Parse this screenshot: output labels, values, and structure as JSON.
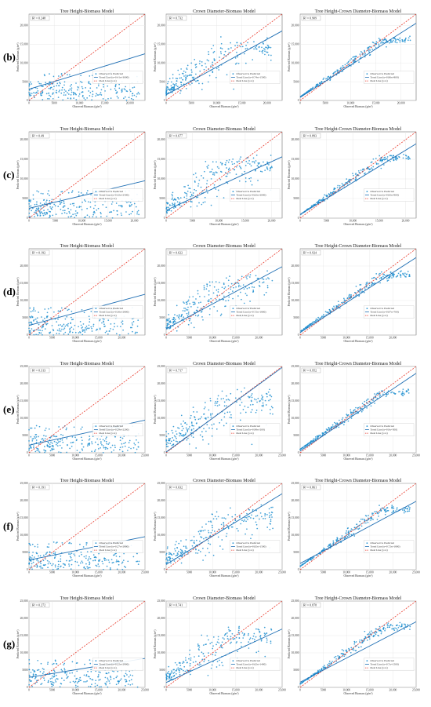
{
  "figure": {
    "row_labels": [
      "(b)",
      "(c)",
      "(d)",
      "(e)",
      "(f)",
      "(g)"
    ],
    "legend": [
      "Observed vs Predicted",
      "Trend Line",
      "Ideal Line (y=x)"
    ],
    "colors": {
      "points": "#1f8fd0",
      "trend": "#1f6fb4",
      "ideal": "#e8392b",
      "grid": "#e3e3e3"
    }
  },
  "chart_data": [
    {
      "row": "(b)",
      "type": "scatter",
      "title": "Tree Height-Biomass Model",
      "r2_label": "R² = 0.248",
      "xlabel": "Observed Biomass (g/m²)",
      "ylabel": "Predicted Biomass (g/m²)",
      "xlim": [
        0,
        23000
      ],
      "ylim": [
        0,
        23000
      ],
      "xticks": [
        0,
        5000,
        10000,
        15000,
        20000
      ],
      "yticks": [
        0,
        5000,
        10000,
        15000,
        20000
      ],
      "trend": {
        "slope": 0.41,
        "intercept": 3000
      },
      "trend_label": "Trend Line (y=0.41x+3000)",
      "pattern": "height",
      "grid": true,
      "legend_position": "right"
    },
    {
      "row": "(b)",
      "type": "scatter",
      "title": "Crown Diameter-Biomass Model",
      "r2_label": "R² = 0.732",
      "xlabel": "Observed Biomass (g/m²)",
      "ylabel": "Predicted Biomass (g/m²)",
      "xlim": [
        0,
        23000
      ],
      "ylim": [
        0,
        23000
      ],
      "xticks": [
        0,
        5000,
        10000,
        15000,
        20000
      ],
      "yticks": [
        0,
        5000,
        10000,
        15000,
        20000
      ],
      "trend": {
        "slope": 0.74,
        "intercept": 1500
      },
      "trend_label": "Trend Line (y=0.74x+1500)",
      "pattern": "crown",
      "grid": true,
      "legend_position": "right"
    },
    {
      "row": "(b)",
      "type": "scatter",
      "title": "Tree Height-Crown Diameter-Biomass Model",
      "r2_label": "R² = 0.909",
      "xlabel": "Observed Biomass (g/m²)",
      "ylabel": "Predicted Biomass (g/m²)",
      "xlim": [
        0,
        23000
      ],
      "ylim": [
        0,
        23000
      ],
      "xticks": [
        0,
        5000,
        10000,
        15000,
        20000
      ],
      "yticks": [
        0,
        5000,
        10000,
        15000,
        20000
      ],
      "trend": {
        "slope": 0.86,
        "intercept": 800
      },
      "trend_label": "Trend Line (y=0.86x+800)",
      "pattern": "combined",
      "grid": true,
      "legend_position": "right"
    },
    {
      "row": "(c)",
      "type": "scatter",
      "title": "Tree Height-Biomass Model",
      "r2_label": "R² = 0.49",
      "xlabel": "Observed Biomass (g/m²)",
      "ylabel": "Predicted Biomass (g/m²)",
      "xlim": [
        0,
        22000
      ],
      "ylim": [
        0,
        22000
      ],
      "xticks": [
        0,
        5000,
        10000,
        15000,
        20000
      ],
      "yticks": [
        0,
        5000,
        10000,
        15000,
        20000
      ],
      "trend": {
        "slope": 0.32,
        "intercept": 2500
      },
      "trend_label": "Trend Line (y=0.32x+2500)",
      "pattern": "height",
      "grid": true,
      "legend_position": "right"
    },
    {
      "row": "(c)",
      "type": "scatter",
      "title": "Crown Diameter-Biomass Model",
      "r2_label": "R² = 0.677",
      "xlabel": "Observed Biomass (g/m²)",
      "ylabel": "Predicted Biomass (g/m²)",
      "xlim": [
        0,
        22000
      ],
      "ylim": [
        0,
        22000
      ],
      "xticks": [
        0,
        5000,
        10000,
        15000,
        20000
      ],
      "yticks": [
        0,
        5000,
        10000,
        15000,
        20000
      ],
      "trend": {
        "slope": 0.62,
        "intercept": 2000
      },
      "trend_label": "Trend Line (y=0.62x+2000)",
      "pattern": "crown",
      "grid": true,
      "legend_position": "right"
    },
    {
      "row": "(c)",
      "type": "scatter",
      "title": "Tree Height-Crown Diameter-Biomass Model",
      "r2_label": "R² = 0.893",
      "xlabel": "Observed Biomass (g/m²)",
      "ylabel": "Predicted Biomass (g/m²)",
      "xlim": [
        0,
        22000
      ],
      "ylim": [
        0,
        22000
      ],
      "xticks": [
        0,
        5000,
        10000,
        15000,
        20000
      ],
      "yticks": [
        0,
        5000,
        10000,
        15000,
        20000
      ],
      "trend": {
        "slope": 0.82,
        "intercept": 900
      },
      "trend_label": "Trend Line (y=0.82x+900)",
      "pattern": "combined",
      "grid": true,
      "legend_position": "right"
    },
    {
      "row": "(d)",
      "type": "scatter",
      "title": "Tree Height-Biomass Model",
      "r2_label": "R² = 0.192",
      "xlabel": "Observed Biomass (g/m²)",
      "ylabel": "Predicted Biomass (g/m²)",
      "xlim": [
        0,
        25000
      ],
      "ylim": [
        0,
        25000
      ],
      "xticks": [
        0,
        5000,
        10000,
        15000,
        20000
      ],
      "yticks": [
        0,
        5000,
        10000,
        15000,
        20000
      ],
      "trend": {
        "slope": 0.36,
        "intercept": 2800
      },
      "trend_label": "Trend Line (y=0.36x+2800)",
      "pattern": "height",
      "grid": true,
      "legend_position": "right"
    },
    {
      "row": "(d)",
      "type": "scatter",
      "title": "Crown Diameter-Biomass Model",
      "r2_label": "R² = 0.622",
      "xlabel": "Observed Biomass (g/m²)",
      "ylabel": "Predicted Biomass (g/m²)",
      "xlim": [
        0,
        25000
      ],
      "ylim": [
        0,
        25000
      ],
      "xticks": [
        0,
        5000,
        10000,
        15000,
        20000
      ],
      "yticks": [
        0,
        5000,
        10000,
        15000,
        20000
      ],
      "trend": {
        "slope": 0.72,
        "intercept": 1800
      },
      "trend_label": "Trend Line (y=0.72x+1800)",
      "pattern": "crown",
      "grid": true,
      "legend_position": "right"
    },
    {
      "row": "(d)",
      "type": "scatter",
      "title": "Tree Height-Crown Diameter-Biomass Model",
      "r2_label": "R² = 0.924",
      "xlabel": "Observed Biomass (g/m²)",
      "ylabel": "Predicted Biomass (g/m²)",
      "xlim": [
        0,
        25000
      ],
      "ylim": [
        0,
        25000
      ],
      "xticks": [
        0,
        5000,
        10000,
        15000,
        20000
      ],
      "yticks": [
        0,
        5000,
        10000,
        15000,
        20000
      ],
      "trend": {
        "slope": 0.87,
        "intercept": 700
      },
      "trend_label": "Trend Line (y=0.87x+700)",
      "pattern": "combined",
      "grid": true,
      "legend_position": "right"
    },
    {
      "row": "(e)",
      "type": "scatter",
      "title": "Tree Height-Biomass Model",
      "r2_label": "R² = 0.313",
      "xlabel": "Observed Biomass (g/m²)",
      "ylabel": "Predicted Biomass (g/m²)",
      "xlim": [
        0,
        25000
      ],
      "ylim": [
        0,
        25000
      ],
      "xticks": [
        0,
        5000,
        10000,
        15000,
        20000,
        25000
      ],
      "yticks": [
        0,
        5000,
        10000,
        15000,
        20000,
        25000
      ],
      "trend": {
        "slope": 0.29,
        "intercept": 2200
      },
      "trend_label": "Trend Line (y=0.29x+2200)",
      "pattern": "height",
      "grid": true,
      "legend_position": "right"
    },
    {
      "row": "(e)",
      "type": "scatter",
      "title": "Crown Diameter-Biomass Model",
      "r2_label": "R² = 0.717",
      "xlabel": "Observed Biomass (g/m²)",
      "ylabel": "Predicted Biomass (g/m²)",
      "xlim": [
        0,
        25000
      ],
      "ylim": [
        0,
        25000
      ],
      "xticks": [
        0,
        5000,
        10000,
        15000,
        20000,
        25000
      ],
      "yticks": [
        0,
        5000,
        10000,
        15000,
        20000,
        25000
      ],
      "trend": {
        "slope": 0.98,
        "intercept": 200
      },
      "trend_label": "Trend Line (y=0.98x+200)",
      "pattern": "crown",
      "grid": true,
      "legend_position": "right"
    },
    {
      "row": "(e)",
      "type": "scatter",
      "title": "Tree Height-Crown Diameter-Biomass Model",
      "r2_label": "R² = 0.952",
      "xlabel": "Observed Biomass (g/m²)",
      "ylabel": "Predicted Biomass (g/m²)",
      "xlim": [
        0,
        25000
      ],
      "ylim": [
        0,
        25000
      ],
      "xticks": [
        0,
        5000,
        10000,
        15000,
        20000,
        25000
      ],
      "yticks": [
        0,
        5000,
        10000,
        15000,
        20000,
        25000
      ],
      "trend": {
        "slope": 0.9,
        "intercept": 500
      },
      "trend_label": "Trend Line (y=0.9x+500)",
      "pattern": "combined",
      "grid": true,
      "legend_position": "right"
    },
    {
      "row": "(f)",
      "type": "scatter",
      "title": "Tree Height-Biomass Model",
      "r2_label": "R² = 0.191",
      "xlabel": "Observed Biomass (g/m²)",
      "ylabel": "Predicted Biomass (g/m²)",
      "xlim": [
        0,
        25000
      ],
      "ylim": [
        0,
        25000
      ],
      "xticks": [
        0,
        5000,
        10000,
        15000,
        20000,
        25000
      ],
      "yticks": [
        0,
        5000,
        10000,
        15000,
        20000,
        25000
      ],
      "trend": {
        "slope": 0.27,
        "intercept": 2800
      },
      "trend_label": "Trend Line (y=0.27x+2800)",
      "pattern": "height",
      "grid": true,
      "legend_position": "right"
    },
    {
      "row": "(f)",
      "type": "scatter",
      "title": "Crown Diameter-Biomass Model",
      "r2_label": "R² = 0.632",
      "xlabel": "Observed Biomass (g/m²)",
      "ylabel": "Predicted Biomass (g/m²)",
      "xlim": [
        0,
        25000
      ],
      "ylim": [
        0,
        25000
      ],
      "xticks": [
        0,
        5000,
        10000,
        15000,
        20000,
        25000
      ],
      "yticks": [
        0,
        5000,
        10000,
        15000,
        20000,
        25000
      ],
      "trend": {
        "slope": 0.82,
        "intercept": 1500
      },
      "trend_label": "Trend Line (y=0.82x+1500)",
      "pattern": "crown",
      "grid": true,
      "legend_position": "right"
    },
    {
      "row": "(f)",
      "type": "scatter",
      "title": "Tree Height-Crown Diameter-Biomass Model",
      "r2_label": "R² = 0.861",
      "xlabel": "Observed Biomass (g/m²)",
      "ylabel": "Predicted Biomass (g/m²)",
      "xlim": [
        0,
        25000
      ],
      "ylim": [
        0,
        25000
      ],
      "xticks": [
        0,
        5000,
        10000,
        15000,
        20000,
        25000
      ],
      "yticks": [
        0,
        5000,
        10000,
        15000,
        20000,
        25000
      ],
      "trend": {
        "slope": 0.72,
        "intercept": 1800
      },
      "trend_label": "Trend Line (y=0.72x+1800)",
      "pattern": "combined",
      "grid": true,
      "legend_position": "right"
    },
    {
      "row": "(g)",
      "type": "scatter",
      "title": "Tree Height-Biomass Model",
      "r2_label": "R² = 0.272",
      "xlabel": "Observed Biomass (g/m²)",
      "ylabel": "Predicted Biomass (g/m²)",
      "xlim": [
        0,
        25000
      ],
      "ylim": [
        0,
        25000
      ],
      "xticks": [
        0,
        5000,
        10000,
        15000,
        20000,
        25000
      ],
      "yticks": [
        0,
        5000,
        10000,
        15000,
        20000,
        25000
      ],
      "trend": {
        "slope": 0.22,
        "intercept": 2900
      },
      "trend_label": "Trend Line (y=0.22x+2900)",
      "pattern": "height",
      "grid": true,
      "legend_position": "right"
    },
    {
      "row": "(g)",
      "type": "scatter",
      "title": "Crown Diameter-Biomass Model",
      "r2_label": "R² = 0.741",
      "xlabel": "Observed Biomass (g/m²)",
      "ylabel": "Predicted Biomass (g/m²)",
      "xlim": [
        0,
        25000
      ],
      "ylim": [
        0,
        25000
      ],
      "xticks": [
        0,
        5000,
        10000,
        15000,
        20000,
        25000
      ],
      "yticks": [
        0,
        5000,
        10000,
        15000,
        20000,
        25000
      ],
      "trend": {
        "slope": 0.62,
        "intercept": 1400
      },
      "trend_label": "Trend Line (y=0.62x+1400)",
      "pattern": "crown",
      "grid": true,
      "legend_position": "right"
    },
    {
      "row": "(g)",
      "type": "scatter",
      "title": "Tree Height-Crown Diameter-Biomass Model",
      "r2_label": "R² = 0.878",
      "xlabel": "Observed Biomass (g/m²)",
      "ylabel": "Predicted Biomass (g/m²)",
      "xlim": [
        0,
        25000
      ],
      "ylim": [
        0,
        25000
      ],
      "xticks": [
        0,
        5000,
        10000,
        15000,
        20000,
        25000
      ],
      "yticks": [
        0,
        5000,
        10000,
        15000,
        20000,
        25000
      ],
      "trend": {
        "slope": 0.7,
        "intercept": 1500
      },
      "trend_label": "Trend Line (y=0.7x+1500)",
      "pattern": "combined",
      "grid": true,
      "legend_position": "right"
    }
  ]
}
